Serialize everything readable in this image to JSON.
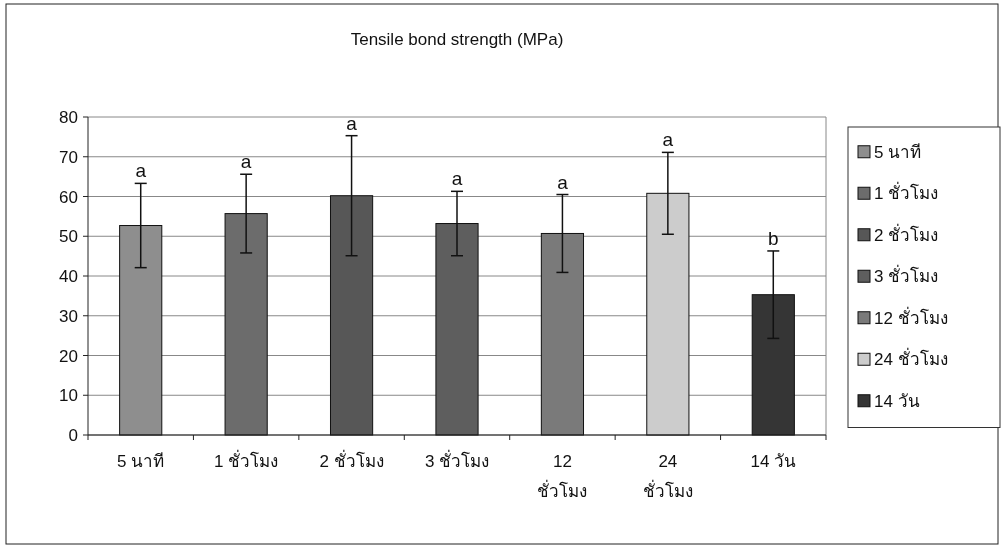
{
  "chart_data": {
    "type": "bar",
    "title": "Tensile bond strength (MPa)",
    "categories": [
      "5 นาที",
      "1 ชั่วโมง",
      "2 ชั่วโมง",
      "3 ชั่วโมง",
      "12 ชั่วโมง",
      "24 ชั่วโมง",
      "14 วัน"
    ],
    "series": [
      {
        "name": "5 นาที",
        "color": "#8e8e8e",
        "values": [
          52.7,
          null,
          null,
          null,
          null,
          null,
          null
        ],
        "errors": [
          10.6,
          null,
          null,
          null,
          null,
          null,
          null
        ]
      },
      {
        "name": "1 ชั่วโมง",
        "color": "#6c6c6c",
        "values": [
          null,
          55.7,
          null,
          null,
          null,
          null,
          null
        ],
        "errors": [
          null,
          9.9,
          null,
          null,
          null,
          null,
          null
        ]
      },
      {
        "name": "2 ชั่วโมง",
        "color": "#575757",
        "values": [
          null,
          null,
          60.2,
          null,
          null,
          null,
          null
        ],
        "errors": [
          null,
          null,
          15.1,
          null,
          null,
          null,
          null
        ]
      },
      {
        "name": "3 ชั่วโมง",
        "color": "#5e5e5e",
        "values": [
          null,
          null,
          null,
          53.2,
          null,
          null,
          null
        ],
        "errors": [
          null,
          null,
          null,
          8.1,
          null,
          null,
          null
        ]
      },
      {
        "name": "12 ชั่วโมง",
        "color": "#7a7a7a",
        "values": [
          null,
          null,
          null,
          null,
          50.7,
          null,
          null
        ],
        "errors": [
          null,
          null,
          null,
          null,
          9.8,
          null,
          null
        ]
      },
      {
        "name": "24 ชั่วโมง",
        "color": "#cccccc",
        "values": [
          null,
          null,
          null,
          null,
          null,
          60.8,
          null
        ],
        "errors": [
          null,
          null,
          null,
          null,
          null,
          10.3,
          null
        ]
      },
      {
        "name": "14 วัน",
        "color": "#353535",
        "values": [
          null,
          null,
          null,
          null,
          null,
          null,
          35.3
        ],
        "errors": [
          null,
          null,
          null,
          null,
          null,
          null,
          11
        ]
      }
    ],
    "ylim": [
      0,
      80
    ],
    "yticks": [
      0,
      10,
      20,
      30,
      40,
      50,
      60,
      70,
      80
    ],
    "grid": "y",
    "legend": "right",
    "annotations": [
      {
        "text": "a",
        "x": "5 นาที",
        "y": 63.3
      },
      {
        "text": "a",
        "x": "1 ชั่วโมง",
        "y": 65.6
      },
      {
        "text": "a",
        "x": "2 ชั่วโมง",
        "y": 75.3
      },
      {
        "text": "a",
        "x": "3 ชั่วโมง",
        "y": 61.3
      },
      {
        "text": "a",
        "x": "12 ชั่วโมง",
        "y": 60.5
      },
      {
        "text": "a",
        "x": "24 ชั่วโมง",
        "y": 71.1
      },
      {
        "text": "b",
        "x": "14 วัน",
        "y": 46.3
      }
    ]
  }
}
